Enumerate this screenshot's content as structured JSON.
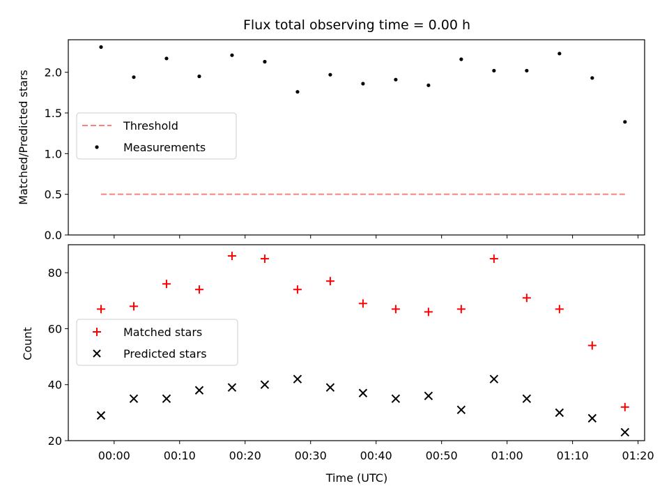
{
  "chart_data": [
    {
      "type": "scatter",
      "title": "Flux total observing time = 0.00 h",
      "xlabel": "",
      "ylabel": "Matched/Predicted stars",
      "ylim": [
        0,
        2.4
      ],
      "yticks": [
        0.0,
        0.5,
        1.0,
        1.5,
        2.0
      ],
      "ytick_labels": [
        "0.0",
        "0.5",
        "1.0",
        "1.5",
        "2.0"
      ],
      "x_minutes": [
        -2,
        3,
        8,
        13,
        18,
        23,
        28,
        33,
        38,
        43,
        48,
        53,
        58,
        63,
        68,
        73,
        78
      ],
      "series": [
        {
          "name": "Threshold",
          "kind": "dashed-line",
          "color": "#ff7f7f",
          "x": [
            -2,
            78
          ],
          "values": [
            0.5,
            0.5
          ]
        },
        {
          "name": "Measurements",
          "kind": "dot",
          "color": "#000000",
          "values": [
            2.31,
            1.94,
            2.17,
            1.95,
            2.21,
            2.13,
            1.76,
            1.97,
            1.86,
            1.91,
            1.84,
            2.16,
            2.02,
            2.02,
            2.23,
            1.93,
            1.39
          ]
        }
      ],
      "legend": [
        "Threshold",
        "Measurements"
      ],
      "legend_position": "center-left"
    },
    {
      "type": "scatter",
      "title": "",
      "xlabel": "Time (UTC)",
      "ylabel": "Count",
      "ylim": [
        20,
        90
      ],
      "yticks": [
        20,
        40,
        60,
        80
      ],
      "ytick_labels": [
        "20",
        "40",
        "60",
        "80"
      ],
      "xlim": [
        -7,
        81
      ],
      "xticks": [
        0,
        10,
        20,
        30,
        40,
        50,
        60,
        70,
        80
      ],
      "xtick_labels": [
        "00:00",
        "00:10",
        "00:20",
        "00:30",
        "00:40",
        "00:50",
        "01:00",
        "01:10",
        "01:20"
      ],
      "x_minutes": [
        -2,
        3,
        8,
        13,
        18,
        23,
        28,
        33,
        38,
        43,
        48,
        53,
        58,
        63,
        68,
        73,
        78
      ],
      "series": [
        {
          "name": "Matched stars",
          "kind": "plus",
          "color": "#ff0000",
          "values": [
            67,
            68,
            76,
            74,
            86,
            85,
            74,
            77,
            69,
            67,
            66,
            67,
            85,
            71,
            67,
            54,
            32
          ]
        },
        {
          "name": "Predicted stars",
          "kind": "cross",
          "color": "#000000",
          "values": [
            29,
            35,
            35,
            38,
            39,
            40,
            42,
            39,
            37,
            35,
            36,
            31,
            42,
            35,
            30,
            28,
            23
          ]
        }
      ],
      "legend": [
        "Matched stars",
        "Predicted stars"
      ],
      "legend_position": "center-left"
    }
  ]
}
